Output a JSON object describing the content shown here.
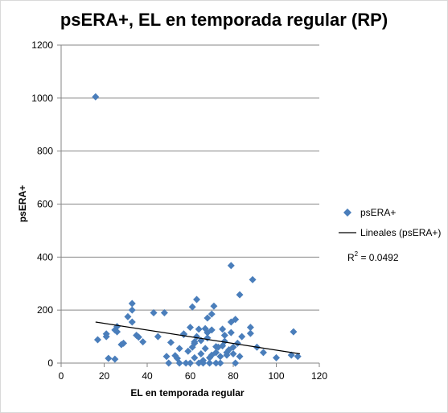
{
  "chart_data": {
    "type": "scatter",
    "title": "psERA+, EL en temporada regular (RP)",
    "xlabel": "EL en temporada regular",
    "ylabel": "psERA+",
    "xlim": [
      0,
      120
    ],
    "ylim": [
      0,
      1200
    ],
    "xticks": [
      "0",
      "20",
      "40",
      "60",
      "80",
      "100",
      "120"
    ],
    "yticks": [
      "0",
      "200",
      "400",
      "600",
      "800",
      "1000",
      "1200"
    ],
    "grid": "horizontal",
    "legend_position": "right",
    "marker_color": "#4a7ebb",
    "trend_color": "#000000",
    "series": [
      {
        "name": "psERA+",
        "points": [
          [
            16,
            1005
          ],
          [
            17,
            88
          ],
          [
            21,
            110
          ],
          [
            21,
            100
          ],
          [
            22,
            18
          ],
          [
            25,
            15
          ],
          [
            25,
            125
          ],
          [
            26,
            138
          ],
          [
            26,
            118
          ],
          [
            28,
            70
          ],
          [
            29,
            75
          ],
          [
            31,
            175
          ],
          [
            33,
            155
          ],
          [
            33,
            200
          ],
          [
            33,
            225
          ],
          [
            35,
            105
          ],
          [
            36,
            98
          ],
          [
            38,
            80
          ],
          [
            43,
            190
          ],
          [
            45,
            100
          ],
          [
            48,
            190
          ],
          [
            49,
            25
          ],
          [
            50,
            0
          ],
          [
            51,
            78
          ],
          [
            53,
            28
          ],
          [
            54,
            18
          ],
          [
            55,
            55
          ],
          [
            55,
            0
          ],
          [
            57,
            110
          ],
          [
            57,
            108
          ],
          [
            58,
            0
          ],
          [
            59,
            45
          ],
          [
            60,
            0
          ],
          [
            60,
            135
          ],
          [
            61,
            60
          ],
          [
            61,
            212
          ],
          [
            62,
            80
          ],
          [
            62,
            75
          ],
          [
            62,
            20
          ],
          [
            63,
            240
          ],
          [
            63,
            100
          ],
          [
            64,
            0
          ],
          [
            64,
            128
          ],
          [
            65,
            85
          ],
          [
            65,
            35
          ],
          [
            66,
            10
          ],
          [
            66,
            0
          ],
          [
            67,
            55
          ],
          [
            67,
            130
          ],
          [
            68,
            170
          ],
          [
            68,
            115
          ],
          [
            68,
            95
          ],
          [
            69,
            20
          ],
          [
            69,
            0
          ],
          [
            70,
            30
          ],
          [
            70,
            125
          ],
          [
            70,
            185
          ],
          [
            71,
            215
          ],
          [
            72,
            40
          ],
          [
            72,
            0
          ],
          [
            72,
            62
          ],
          [
            73,
            60
          ],
          [
            74,
            25
          ],
          [
            74,
            0
          ],
          [
            75,
            128
          ],
          [
            75,
            65
          ],
          [
            76,
            105
          ],
          [
            76,
            82
          ],
          [
            77,
            40
          ],
          [
            77,
            30
          ],
          [
            78,
            50
          ],
          [
            79,
            368
          ],
          [
            79,
            155
          ],
          [
            79,
            115
          ],
          [
            80,
            60
          ],
          [
            80,
            35
          ],
          [
            81,
            165
          ],
          [
            81,
            0
          ],
          [
            82,
            75
          ],
          [
            83,
            258
          ],
          [
            83,
            25
          ],
          [
            84,
            100
          ],
          [
            88,
            112
          ],
          [
            88,
            135
          ],
          [
            89,
            315
          ],
          [
            91,
            60
          ],
          [
            94,
            40
          ],
          [
            100,
            20
          ],
          [
            107,
            30
          ],
          [
            108,
            118
          ],
          [
            110,
            25
          ]
        ]
      }
    ],
    "trendline": {
      "name": "Lineales (psERA+)",
      "type": "linear",
      "x": [
        16,
        111
      ],
      "y": [
        155,
        35
      ],
      "r2_label": "R",
      "r2_sup": "2",
      "r2_value": " = 0.0492"
    }
  }
}
